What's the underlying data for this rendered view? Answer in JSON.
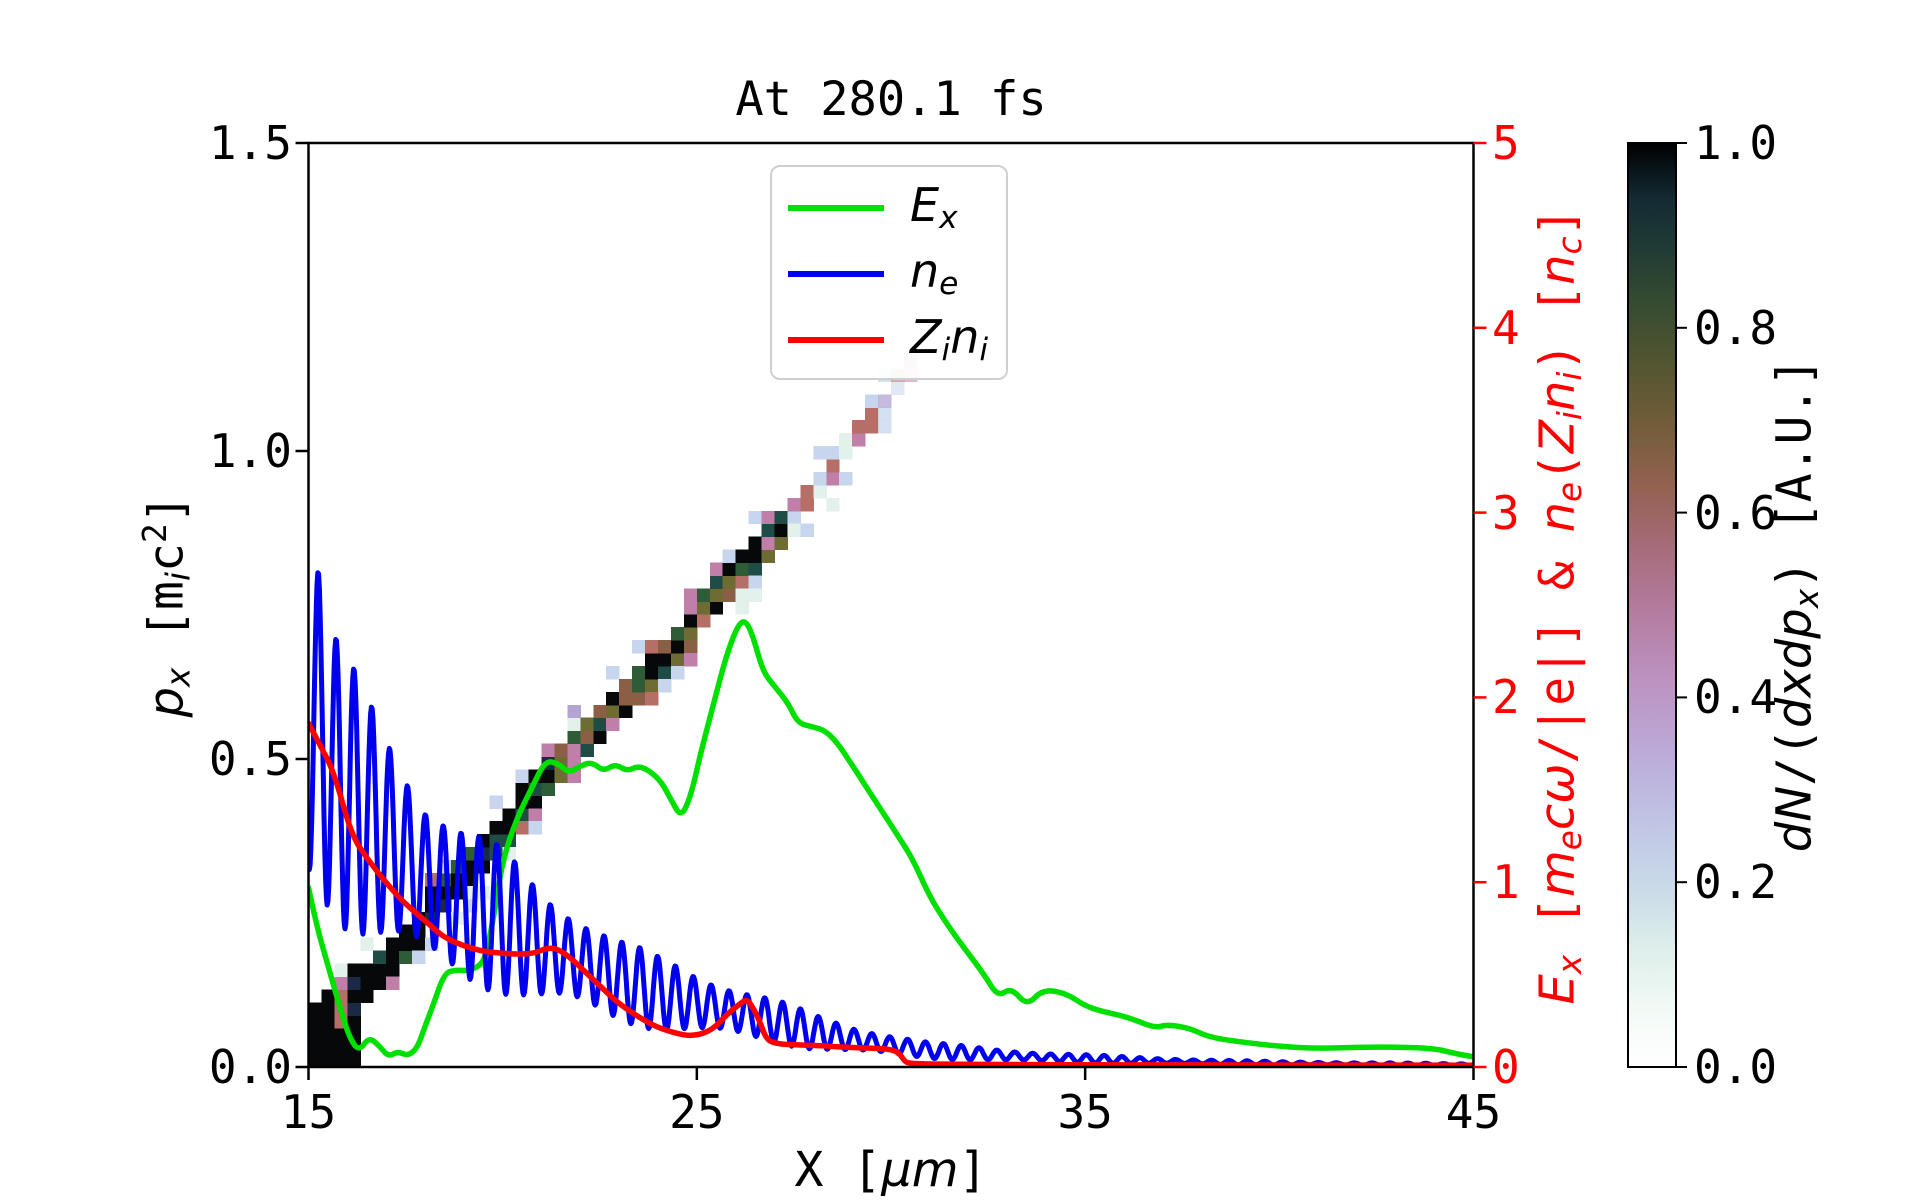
{
  "chart_data": {
    "type": "line+heatmap",
    "title": "At 280.1 fs",
    "background": "#ffffff",
    "x_axis": {
      "label_segments": [
        [
          "X [",
          "n"
        ],
        [
          "μ",
          "i"
        ],
        [
          "m",
          "i"
        ],
        [
          "]",
          "n"
        ]
      ],
      "range": [
        15,
        45
      ],
      "ticks": [
        "15",
        "25",
        "35",
        "45"
      ],
      "tick_values": [
        15,
        25,
        35,
        45
      ]
    },
    "y_left": {
      "label_segments": [
        [
          "p",
          "i"
        ],
        [
          "x",
          "i sub"
        ],
        [
          " [",
          "n"
        ],
        [
          "m",
          "n"
        ],
        [
          "i",
          "i sub"
        ],
        [
          "c",
          "n"
        ],
        [
          "2",
          "n sup"
        ],
        [
          "]",
          "n"
        ]
      ],
      "range": [
        0,
        1.5
      ],
      "ticks": [
        "0.0",
        "0.5",
        "1.0",
        "1.5"
      ],
      "tick_values": [
        0,
        0.5,
        1.0,
        1.5
      ]
    },
    "y_right": {
      "label_segments": [
        [
          "E",
          "i"
        ],
        [
          "x",
          "i sub"
        ],
        [
          " [",
          "n"
        ],
        [
          "m",
          "i"
        ],
        [
          "e",
          "i sub"
        ],
        [
          "c",
          "i"
        ],
        [
          "ω",
          "i"
        ],
        [
          "/|e|] & ",
          "n"
        ],
        [
          "n",
          "i"
        ],
        [
          "e",
          "i sub"
        ],
        [
          "(",
          "n"
        ],
        [
          "Z",
          "i"
        ],
        [
          "i",
          "i sub"
        ],
        [
          "n",
          "i"
        ],
        [
          "i",
          "i sub"
        ],
        [
          ") [",
          "n"
        ],
        [
          "n",
          "i"
        ],
        [
          "c",
          "i sub"
        ],
        [
          "]",
          "n"
        ]
      ],
      "range": [
        0,
        5
      ],
      "ticks": [
        "0",
        "1",
        "2",
        "3",
        "4",
        "5"
      ],
      "tick_values": [
        0,
        1,
        2,
        3,
        4,
        5
      ],
      "color": "#ff0000"
    },
    "colorbar": {
      "label_segments": [
        [
          "d",
          "i"
        ],
        [
          "N",
          "i"
        ],
        [
          "/(",
          "n"
        ],
        [
          "d",
          "i"
        ],
        [
          "x",
          "i"
        ],
        [
          "d",
          "i"
        ],
        [
          "p",
          "i"
        ],
        [
          "x",
          "i sub"
        ],
        [
          ") [A.U.]",
          "n"
        ]
      ],
      "range": [
        0,
        1
      ],
      "ticks": [
        "0.0",
        "0.2",
        "0.4",
        "0.6",
        "0.8",
        "1.0"
      ],
      "tick_values": [
        0,
        0.2,
        0.4,
        0.6,
        0.8,
        1.0
      ],
      "colormap": "cubehelix_r",
      "stops": [
        [
          0.0,
          "#ffffff"
        ],
        [
          0.06,
          "#f3faf6"
        ],
        [
          0.13,
          "#ddeeea"
        ],
        [
          0.2,
          "#c8d8e8"
        ],
        [
          0.27,
          "#c0c3e4"
        ],
        [
          0.34,
          "#bcaad8"
        ],
        [
          0.42,
          "#bc92c0"
        ],
        [
          0.5,
          "#b37a9c"
        ],
        [
          0.57,
          "#a46a76"
        ],
        [
          0.63,
          "#936150"
        ],
        [
          0.7,
          "#6f5c38"
        ],
        [
          0.77,
          "#4f5430"
        ],
        [
          0.83,
          "#344a31"
        ],
        [
          0.89,
          "#1f3a35"
        ],
        [
          0.94,
          "#132a33"
        ],
        [
          1.0,
          "#000000"
        ]
      ]
    },
    "legend": {
      "entries": [
        {
          "segments": [
            [
              "E",
              "i"
            ],
            [
              "x",
              "i sub"
            ]
          ],
          "color": "#00e000"
        },
        {
          "segments": [
            [
              "n",
              "i"
            ],
            [
              "e",
              "i sub"
            ]
          ],
          "color": "#0000ee"
        },
        {
          "segments": [
            [
              "Z",
              "i"
            ],
            [
              "i",
              "i sub"
            ],
            [
              "n",
              "i"
            ],
            [
              "i",
              "i sub"
            ]
          ],
          "color": "#ff0000"
        }
      ]
    },
    "series": [
      {
        "name": "Ex",
        "axis": "right",
        "color": "#00e000",
        "width": 5.5,
        "points": [
          [
            15,
            0.97
          ],
          [
            15.2,
            0.77
          ],
          [
            15.5,
            0.55
          ],
          [
            15.8,
            0.33
          ],
          [
            16.05,
            0.16
          ],
          [
            16.3,
            0.085
          ],
          [
            16.55,
            0.16
          ],
          [
            16.8,
            0.12
          ],
          [
            17.05,
            0.055
          ],
          [
            17.3,
            0.085
          ],
          [
            17.55,
            0.06
          ],
          [
            17.8,
            0.1
          ],
          [
            18.0,
            0.22
          ],
          [
            18.2,
            0.33
          ],
          [
            18.5,
            0.51
          ],
          [
            18.8,
            0.525
          ],
          [
            19.1,
            0.52
          ],
          [
            19.45,
            0.55
          ],
          [
            19.6,
            0.63
          ],
          [
            19.8,
            0.85
          ],
          [
            20.0,
            1.12
          ],
          [
            20.35,
            1.34
          ],
          [
            20.75,
            1.51
          ],
          [
            21.1,
            1.66
          ],
          [
            21.45,
            1.64
          ],
          [
            21.7,
            1.59
          ],
          [
            22.0,
            1.63
          ],
          [
            22.3,
            1.65
          ],
          [
            22.6,
            1.6
          ],
          [
            22.9,
            1.64
          ],
          [
            23.2,
            1.6
          ],
          [
            23.5,
            1.63
          ],
          [
            23.8,
            1.6
          ],
          [
            24.1,
            1.54
          ],
          [
            24.35,
            1.44
          ],
          [
            24.6,
            1.35
          ],
          [
            24.85,
            1.47
          ],
          [
            25.1,
            1.7
          ],
          [
            25.45,
            1.98
          ],
          [
            25.75,
            2.22
          ],
          [
            26.05,
            2.39
          ],
          [
            26.25,
            2.42
          ],
          [
            26.45,
            2.33
          ],
          [
            26.7,
            2.14
          ],
          [
            27.0,
            2.06
          ],
          [
            27.35,
            1.97
          ],
          [
            27.6,
            1.86
          ],
          [
            28.0,
            1.84
          ],
          [
            28.3,
            1.82
          ],
          [
            28.6,
            1.76
          ],
          [
            28.95,
            1.65
          ],
          [
            29.35,
            1.52
          ],
          [
            29.75,
            1.39
          ],
          [
            30.15,
            1.26
          ],
          [
            30.55,
            1.13
          ],
          [
            31.0,
            0.92
          ],
          [
            31.45,
            0.77
          ],
          [
            31.9,
            0.64
          ],
          [
            32.4,
            0.5
          ],
          [
            32.75,
            0.38
          ],
          [
            33.1,
            0.43
          ],
          [
            33.5,
            0.33
          ],
          [
            33.9,
            0.42
          ],
          [
            34.5,
            0.4
          ],
          [
            35.0,
            0.33
          ],
          [
            35.45,
            0.3
          ],
          [
            36.1,
            0.27
          ],
          [
            36.8,
            0.21
          ],
          [
            37.1,
            0.23
          ],
          [
            37.7,
            0.21
          ],
          [
            38.2,
            0.16
          ],
          [
            39.2,
            0.13
          ],
          [
            40.1,
            0.11
          ],
          [
            41.0,
            0.1
          ],
          [
            42.0,
            0.107
          ],
          [
            43.1,
            0.108
          ],
          [
            44.0,
            0.1
          ],
          [
            44.6,
            0.07
          ],
          [
            45,
            0.055
          ]
        ]
      },
      {
        "name": "ne",
        "axis": "right",
        "color": "#0000ee",
        "width": 5,
        "model": {
          "mean_anchors": [
            [
              15,
              1.85
            ],
            [
              15.25,
              1.85
            ],
            [
              15.6,
              1.58
            ],
            [
              16,
              1.48
            ],
            [
              17,
              1.25
            ],
            [
              18,
              1.02
            ],
            [
              19,
              0.88
            ],
            [
              20,
              0.79
            ],
            [
              21,
              0.66
            ],
            [
              22,
              0.57
            ],
            [
              23,
              0.47
            ],
            [
              24,
              0.4
            ],
            [
              25,
              0.345
            ],
            [
              26,
              0.3
            ],
            [
              27,
              0.25
            ],
            [
              28,
              0.19
            ],
            [
              29,
              0.15
            ],
            [
              30,
              0.12
            ],
            [
              31,
              0.09
            ],
            [
              32,
              0.075
            ],
            [
              33,
              0.062
            ],
            [
              34,
              0.052
            ],
            [
              35,
              0.045
            ],
            [
              36,
              0.038
            ],
            [
              37,
              0.032
            ],
            [
              38,
              0.027
            ],
            [
              39,
              0.023
            ],
            [
              40,
              0.02
            ],
            [
              42,
              0.016
            ],
            [
              45,
              0.012
            ]
          ],
          "osc_period_um": 0.46,
          "phase_peak_x": 15.25,
          "amp_ratio_base": 0.42,
          "amp_ratio_mod": 0.08,
          "amp_mod_period_um": 3.9,
          "min_value": 0.006,
          "sample_step_um": 0.02
        }
      },
      {
        "name": "Zini",
        "axis": "right",
        "color": "#ff0000",
        "width": 5.5,
        "points": [
          [
            15,
            1.86
          ],
          [
            15.3,
            1.74
          ],
          [
            15.65,
            1.6
          ],
          [
            16.1,
            1.26
          ],
          [
            16.5,
            1.13
          ],
          [
            16.95,
            1.01
          ],
          [
            17.4,
            0.9
          ],
          [
            17.9,
            0.81
          ],
          [
            18.2,
            0.755
          ],
          [
            18.5,
            0.7
          ],
          [
            19,
            0.655
          ],
          [
            19.5,
            0.625
          ],
          [
            20,
            0.615
          ],
          [
            20.4,
            0.61
          ],
          [
            20.8,
            0.615
          ],
          [
            21.1,
            0.64
          ],
          [
            21.35,
            0.645
          ],
          [
            21.7,
            0.6
          ],
          [
            22.1,
            0.52
          ],
          [
            22.6,
            0.42
          ],
          [
            23.0,
            0.34
          ],
          [
            23.8,
            0.23
          ],
          [
            24.4,
            0.185
          ],
          [
            24.9,
            0.165
          ],
          [
            25.4,
            0.2
          ],
          [
            25.8,
            0.29
          ],
          [
            26.1,
            0.34
          ],
          [
            26.3,
            0.37
          ],
          [
            26.5,
            0.3
          ],
          [
            26.65,
            0.23
          ],
          [
            26.8,
            0.145
          ],
          [
            27.1,
            0.125
          ],
          [
            27.5,
            0.12
          ],
          [
            28.2,
            0.115
          ],
          [
            29,
            0.105
          ],
          [
            29.9,
            0.1
          ],
          [
            30.2,
            0.08
          ],
          [
            30.35,
            0.03
          ],
          [
            30.5,
            0.018
          ],
          [
            31.5,
            0.015
          ],
          [
            33,
            0.013
          ],
          [
            36,
            0.012
          ],
          [
            40,
            0.011
          ],
          [
            45,
            0.01
          ]
        ]
      }
    ],
    "heatmap": {
      "description": "diagonal phase-space band dN/(dxdpx)",
      "band_anchors": [
        [
          15,
          0.04
        ],
        [
          16.2,
          0.1
        ],
        [
          21.3,
          0.47
        ],
        [
          26.3,
          0.8
        ],
        [
          30.45,
          1.13
        ]
      ],
      "x_range": [
        15,
        30.6
      ],
      "cell_um": 0.3333,
      "cell_p": 0.021,
      "seed": 20,
      "fade_x": 29.6,
      "palette": {
        "black": "#06080a",
        "darknavy": "#1b2a44",
        "darkteal": "#1f4c44",
        "darkgreen": "#2d5c36",
        "olive": "#6e6b33",
        "brown": "#8a5f46",
        "rose": "#b56f66",
        "pink": "#bf7fa8",
        "lavender": "#b3a4d4",
        "paleblue": "#c7d6ee",
        "palemint": "#e2f2ea"
      },
      "zones": [
        {
          "x_max": 16.2,
          "type": "blob",
          "core": {
            "black": 0.8,
            "darknavy": 0.06,
            "rose": 0.07,
            "pink": 0.07
          },
          "edge_prob": 0.25,
          "edge": {
            "paleblue": 0.4,
            "palemint": 0.3,
            "pink": 0.3
          }
        },
        {
          "x_max": 21.5,
          "core_rows": 3,
          "core": {
            "black": 0.76,
            "darknavy": 0.08,
            "darkteal": 0.08,
            "darkgreen": 0.08
          },
          "edge_prob": 0.3,
          "edge": {
            "paleblue": 0.4,
            "palemint": 0.3,
            "pink": 0.15,
            "rose": 0.15
          }
        },
        {
          "x_max": 24.6,
          "core_rows": 3,
          "core": {
            "black": 0.36,
            "olive": 0.16,
            "darkgreen": 0.14,
            "darkteal": 0.12,
            "brown": 0.08,
            "pink": 0.08,
            "rose": 0.06
          },
          "edge_prob": 0.45,
          "edge": {
            "paleblue": 0.35,
            "palemint": 0.25,
            "pink": 0.2,
            "lavender": 0.1,
            "rose": 0.1
          }
        },
        {
          "x_max": 27.4,
          "core_rows": 3,
          "core": {
            "black": 0.3,
            "olive": 0.17,
            "brown": 0.13,
            "darkgreen": 0.12,
            "pink": 0.12,
            "darkteal": 0.08,
            "rose": 0.08
          },
          "edge_prob": 0.5,
          "edge": {
            "paleblue": 0.35,
            "palemint": 0.25,
            "pink": 0.25,
            "lavender": 0.15
          }
        },
        {
          "x_max": 30.7,
          "core_rows": 2,
          "core": {
            "rose": 0.28,
            "pink": 0.26,
            "paleblue": 0.22,
            "palemint": 0.12,
            "lavender": 0.12
          },
          "edge_prob": 0.3,
          "edge": {
            "palemint": 0.5,
            "paleblue": 0.5
          }
        }
      ]
    }
  }
}
